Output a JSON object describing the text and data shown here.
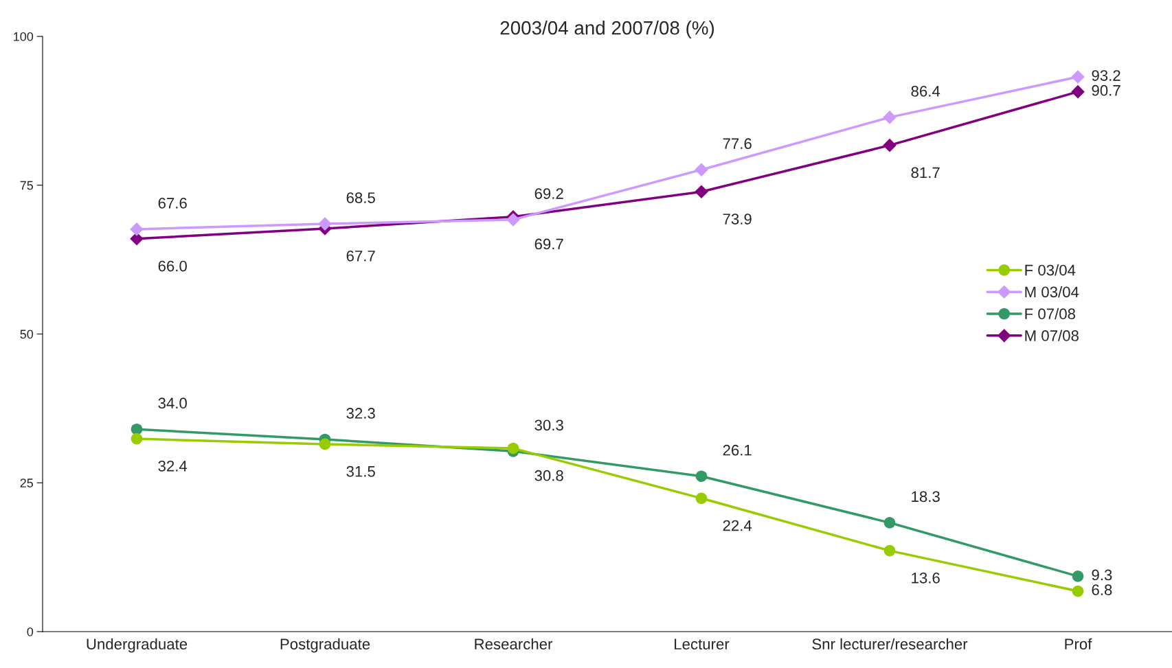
{
  "chart_data": {
    "type": "line",
    "title": "2003/04 and 2007/08 (%)",
    "categories": [
      "Undergraduate",
      "Postgraduate",
      "Researcher",
      "Lecturer",
      "Snr lecturer/researcher",
      "Prof"
    ],
    "series": [
      {
        "name": "F 03/04",
        "color": "#99cc00",
        "marker": "circle",
        "values": [
          32.4,
          31.5,
          30.8,
          22.4,
          13.6,
          6.8
        ],
        "value_labels": [
          "32.4",
          "31.5",
          "30.8",
          "22.4",
          "13.6",
          "6.8"
        ]
      },
      {
        "name": "M 03/04",
        "color": "#cc99ff",
        "marker": "diamond",
        "values": [
          67.6,
          68.5,
          69.2,
          77.6,
          86.4,
          93.2
        ],
        "value_labels": [
          "67.6",
          "68.5",
          "69.2",
          "77.6",
          "86.4",
          "93.2"
        ]
      },
      {
        "name": "F 07/08",
        "color": "#339966",
        "marker": "circle",
        "values": [
          34.0,
          32.3,
          30.3,
          26.1,
          18.3,
          9.3
        ],
        "value_labels": [
          "34.0",
          "32.3",
          "30.3",
          "26.1",
          "18.3",
          "9.3"
        ]
      },
      {
        "name": "M 07/08",
        "color": "#800080",
        "marker": "diamond",
        "values": [
          66.0,
          67.7,
          69.7,
          73.9,
          81.7,
          90.7
        ],
        "value_labels": [
          "66.0",
          "67.7",
          "69.7",
          "73.9",
          "81.7",
          "90.7"
        ]
      }
    ],
    "ylim": [
      0,
      100
    ],
    "yticks": [
      0,
      25,
      50,
      75,
      100
    ],
    "grid": false,
    "legend": "right"
  }
}
